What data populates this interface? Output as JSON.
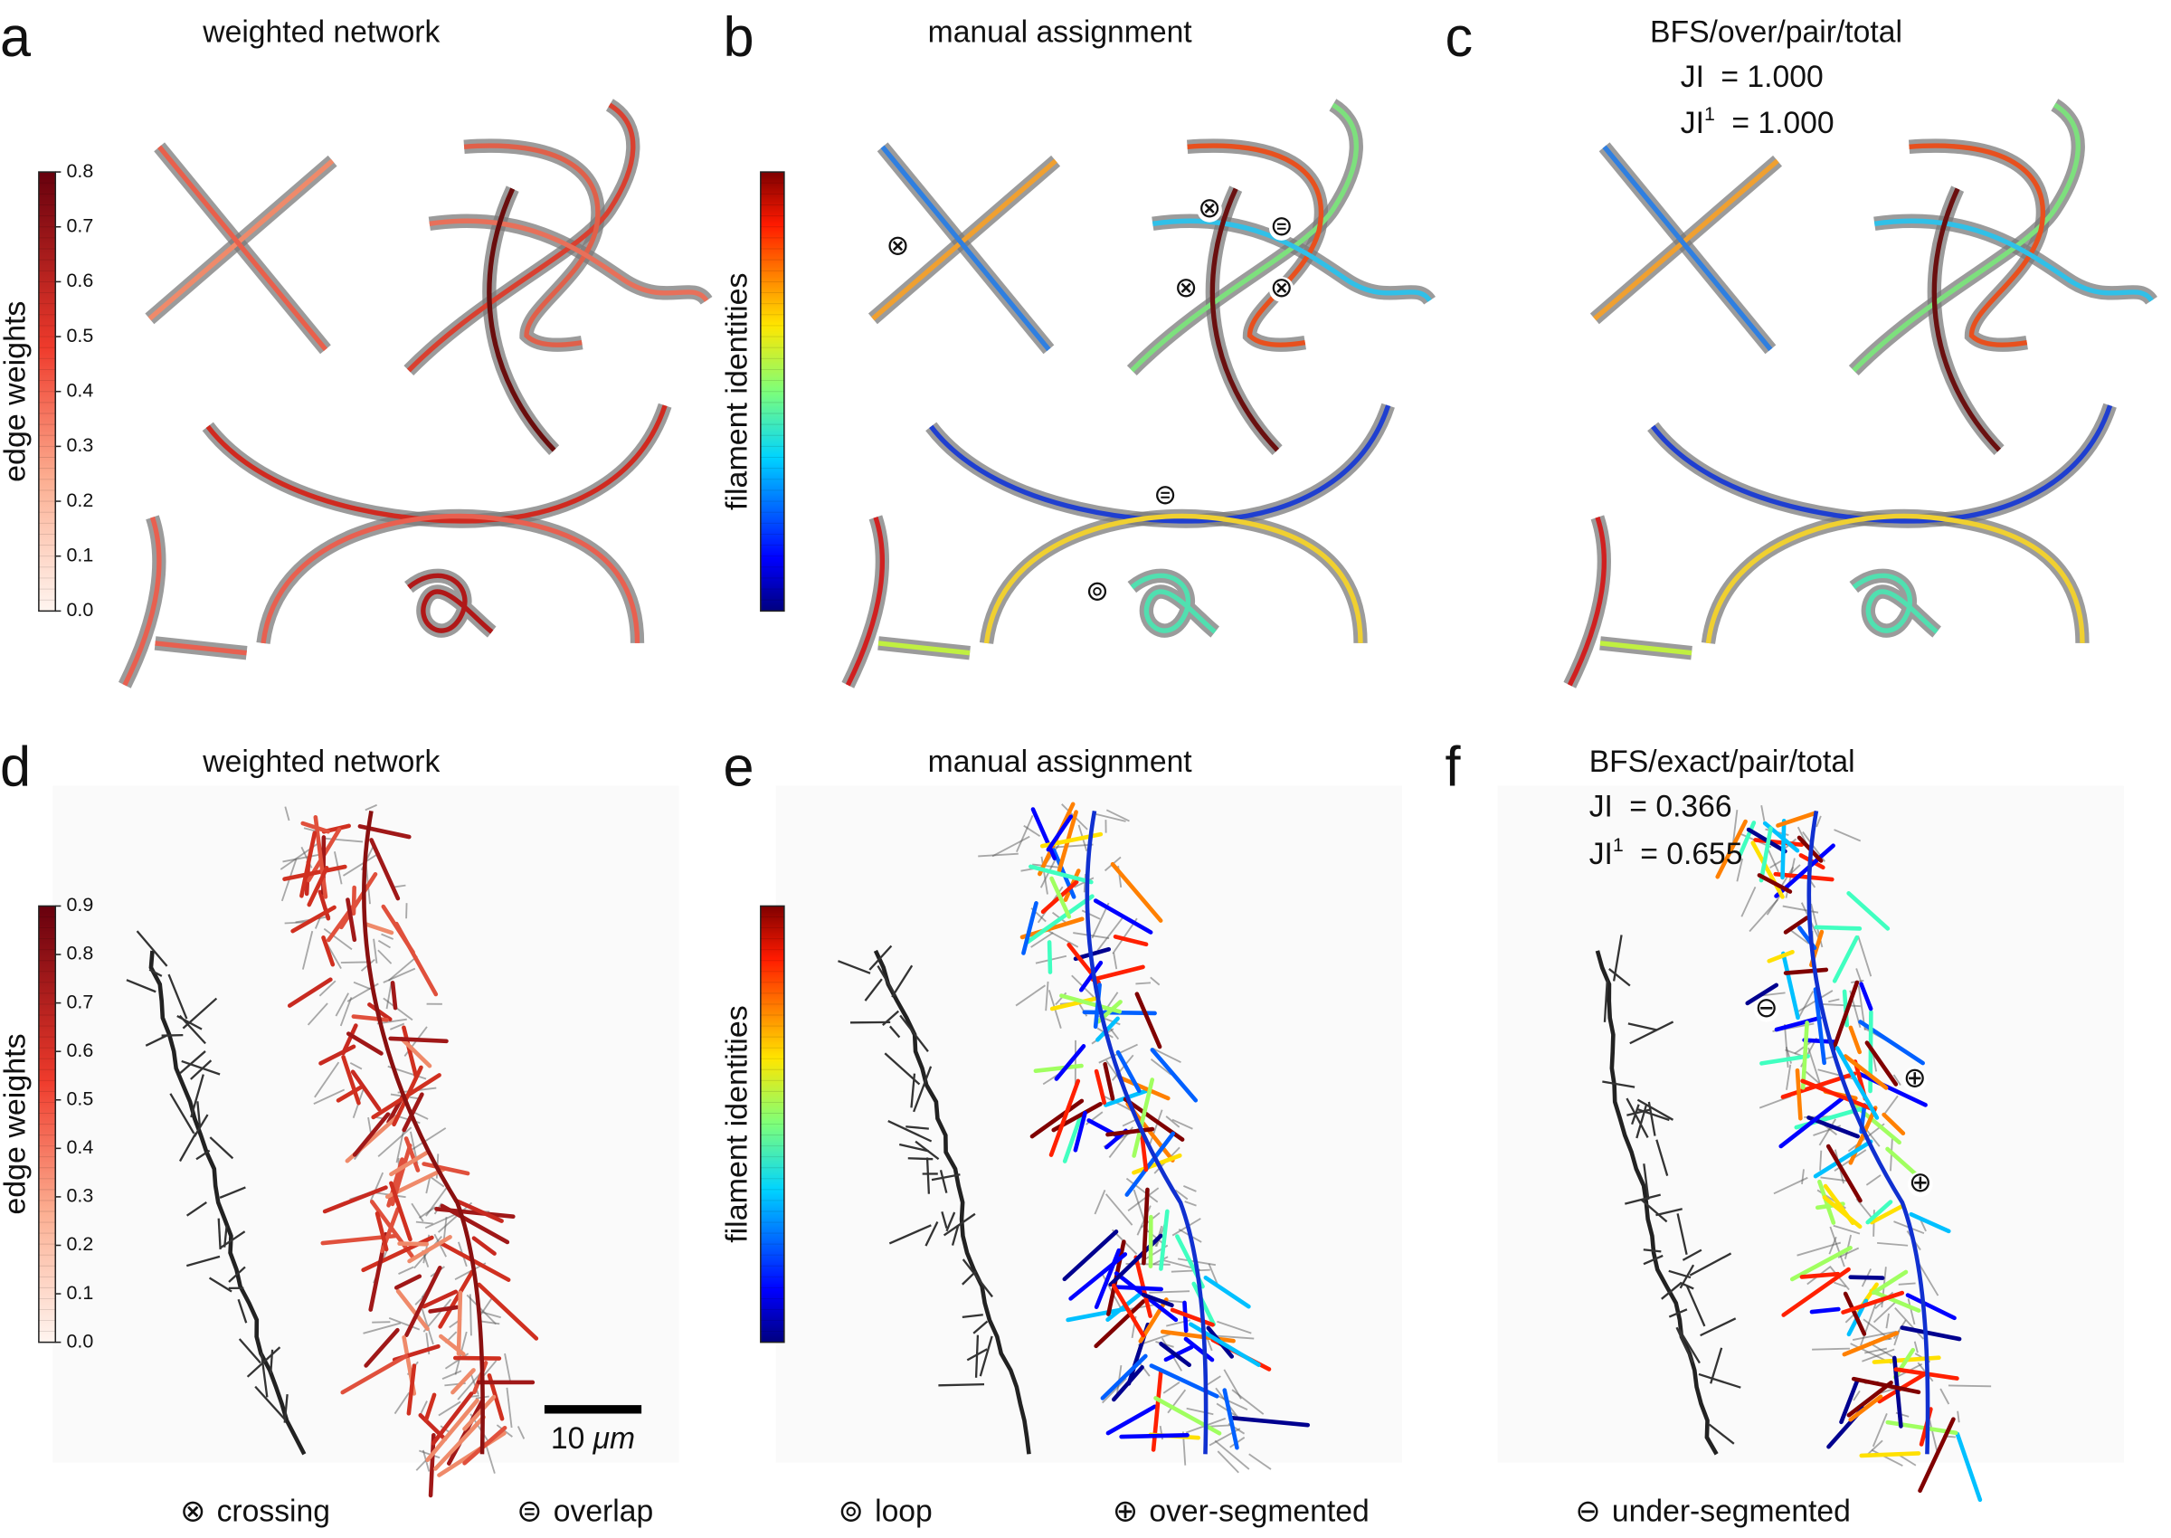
{
  "panels": [
    {
      "letter": "a",
      "title": "weighted network"
    },
    {
      "letter": "b",
      "title": "manual assignment"
    },
    {
      "letter": "c",
      "title": "BFS/over/pair/total",
      "scores": [
        {
          "name": "JI",
          "value": "= 1.000"
        },
        {
          "name": "JI",
          "superscript": "1",
          "value": "= 1.000"
        }
      ]
    },
    {
      "letter": "d",
      "title": "weighted network"
    },
    {
      "letter": "e",
      "title": "manual assignment"
    },
    {
      "letter": "f",
      "title": "BFS/exact/pair/total",
      "scores": [
        {
          "name": "JI",
          "value": "= 0.366"
        },
        {
          "name": "JI",
          "superscript": "1",
          "value": "= 0.655"
        }
      ]
    }
  ],
  "colorbars": [
    {
      "label": "edge weights",
      "lim": [
        0,
        0.8
      ],
      "ticks": [
        {
          "value": 0,
          "label": "0.0"
        },
        0.1,
        0.2,
        0.3,
        0.4,
        0.5,
        0.6,
        0.7,
        0.8
      ]
    },
    {
      "label": "filament identities"
    },
    {
      "label": "edge weights",
      "lim": [
        0,
        0.9
      ],
      "ticks": [
        {
          "value": 0,
          "label": "0.0"
        },
        0.1,
        0.2,
        0.3,
        0.4,
        0.5,
        0.6,
        0.7,
        0.8,
        0.9
      ]
    },
    {
      "label": "filament identities"
    }
  ],
  "scale_bar": {
    "value": "10",
    "unit": "μm"
  },
  "legend": [
    {
      "symbol": "⊗",
      "label": "crossing"
    },
    {
      "symbol": "⊜",
      "label": "overlap"
    },
    {
      "symbol": "⊚",
      "label": "loop"
    },
    {
      "symbol": "⊕",
      "label": "over-segmented"
    },
    {
      "symbol": "⊖",
      "label": "under-segmented"
    }
  ]
}
